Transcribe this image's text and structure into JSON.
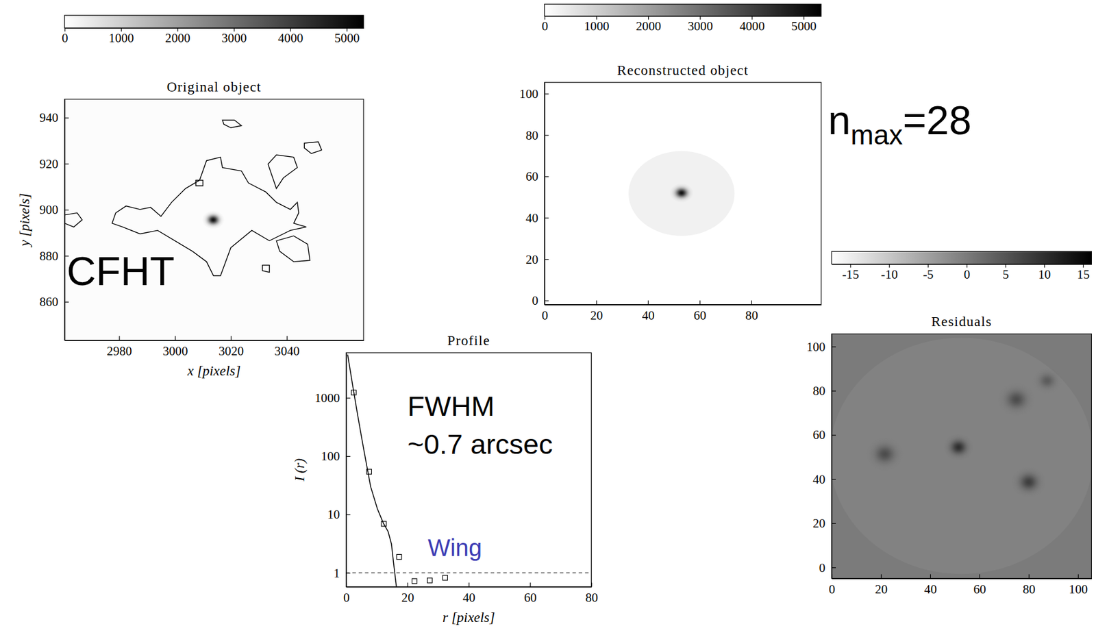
{
  "chart_data": [
    {
      "type": "image",
      "title": "Original object",
      "xlabel": "x [pixels]",
      "ylabel": "y [pixels]",
      "xlim": [
        2960.5,
        3067.5
      ],
      "ylim": [
        843.3,
        948
      ],
      "xticks": [
        2980,
        3000,
        3020,
        3040
      ],
      "yticks": [
        860,
        880,
        900,
        920,
        940
      ],
      "background": 60,
      "sources": [
        {
          "x": 3013.7,
          "y": 895.6,
          "peak": 5000,
          "sigma": 1.3
        }
      ],
      "contours": [
        [
          [
            2977.5,
            894.1
          ],
          [
            2978.8,
            898.6
          ],
          [
            2982.5,
            901.6
          ],
          [
            2987.5,
            900.1
          ],
          [
            2991.3,
            901
          ],
          [
            2995,
            897.1
          ],
          [
            2998.8,
            903.2
          ],
          [
            3003.8,
            909.2
          ],
          [
            3008.8,
            912.8
          ],
          [
            3011.3,
            921.3
          ],
          [
            3016.3,
            922.8
          ],
          [
            3017,
            918.3
          ],
          [
            3023.8,
            916.8
          ],
          [
            3026.3,
            911.6
          ],
          [
            3032.5,
            907.7
          ],
          [
            3036.3,
            903.2
          ],
          [
            3041.3,
            900.1
          ],
          [
            3043.8,
            903.2
          ],
          [
            3044.3,
            898.6
          ],
          [
            3042.5,
            894.1
          ],
          [
            3047,
            892.5
          ],
          [
            3041.3,
            891
          ],
          [
            3033.8,
            886.5
          ],
          [
            3027.5,
            891
          ],
          [
            3020,
            883.5
          ],
          [
            3016.3,
            871.3
          ],
          [
            3013.8,
            871.3
          ],
          [
            3011.3,
            877.4
          ],
          [
            3006.3,
            881.9
          ],
          [
            3000,
            886.5
          ],
          [
            2993.8,
            891
          ],
          [
            2987.5,
            889.5
          ],
          [
            2981.3,
            892.5
          ]
        ],
        [
          [
            3033.3,
            919.8
          ],
          [
            3036.3,
            923.8
          ],
          [
            3042.5,
            922.8
          ],
          [
            3043.8,
            918.3
          ],
          [
            3038.8,
            913.8
          ],
          [
            3036.3,
            909.2
          ],
          [
            3035,
            913.8
          ]
        ],
        [
          [
            3017,
            938.9
          ],
          [
            3021.3,
            938.9
          ],
          [
            3023.8,
            936.5
          ],
          [
            3020,
            935.6
          ],
          [
            3017.5,
            937.1
          ]
        ],
        [
          [
            3046.3,
            928.9
          ],
          [
            3051.3,
            929.5
          ],
          [
            3052.5,
            925.9
          ],
          [
            3048.8,
            924.4
          ],
          [
            3046.3,
            926.8
          ]
        ],
        [
          [
            3036.3,
            886.5
          ],
          [
            3042.5,
            888.6
          ],
          [
            3047.5,
            885
          ],
          [
            3048.3,
            878
          ],
          [
            3042.5,
            877.4
          ],
          [
            3037.5,
            881.9
          ]
        ],
        [
          [
            2960.5,
            897.7
          ],
          [
            2965,
            898.6
          ],
          [
            2966.8,
            895.6
          ],
          [
            2963.8,
            892.5
          ],
          [
            2960.5,
            894.1
          ]
        ],
        [
          [
            3007.5,
            912.8
          ],
          [
            3010,
            912.8
          ],
          [
            3010,
            910.4
          ],
          [
            3007.5,
            910.4
          ]
        ],
        [
          [
            3031.3,
            875.9
          ],
          [
            3033.8,
            875.9
          ],
          [
            3033.8,
            872.8
          ],
          [
            3031.3,
            873.5
          ]
        ]
      ],
      "colorbar": {
        "range": [
          0,
          5300
        ],
        "ticks": [
          0,
          1000,
          2000,
          3000,
          4000,
          5000
        ]
      },
      "annotations": [
        {
          "text": "CFHT"
        }
      ]
    },
    {
      "type": "image",
      "title": "Reconstructed object",
      "xlim": [
        0,
        107
      ],
      "ylim": [
        -2,
        105.4
      ],
      "xticks": [
        0,
        20,
        40,
        60,
        80
      ],
      "yticks": [
        0,
        20,
        40,
        60,
        80,
        100
      ],
      "background": 0,
      "support": {
        "cx": 53,
        "cy": 51.7,
        "r": 20.5,
        "value": 300
      },
      "sources": [
        {
          "x": 53,
          "y": 52,
          "peak": 5000,
          "sigma": 1.5
        }
      ],
      "colorbar": {
        "range": [
          0,
          5340
        ],
        "ticks": [
          0,
          1000,
          2000,
          3000,
          4000,
          5000
        ]
      },
      "annotations": [
        {
          "text": "n",
          "subscript": "max",
          "suffix": "=28"
        }
      ]
    },
    {
      "type": "line",
      "title": "Profile",
      "xlabel": "r [pixels]",
      "ylabel": "I (r)",
      "log": "y",
      "xlim": [
        0,
        80
      ],
      "ylim": [
        0.575,
        5900
      ],
      "xticks": [
        0,
        20,
        40,
        60,
        80
      ],
      "yticks": [
        1,
        10,
        100,
        1000
      ],
      "series": [
        {
          "type": "line",
          "color": "#000000",
          "x": [
            0.5,
            2.5,
            4,
            5.7,
            8,
            10.2,
            12.1,
            13.7,
            14.8,
            15.5,
            16.4
          ],
          "values": [
            5500,
            1250,
            430,
            135,
            30,
            12.5,
            7.2,
            5.1,
            3.1,
            1.45,
            0.58
          ]
        },
        {
          "type": "scatter",
          "marker": "square",
          "color": "#000000",
          "x": [
            2.5,
            7.5,
            12.3,
            17.3,
            22.3,
            27.3,
            32.3
          ],
          "values": [
            1230,
            54,
            6.9,
            1.87,
            0.72,
            0.74,
            0.82
          ]
        }
      ],
      "reference_line": {
        "value": 1,
        "line_style": "dashed"
      },
      "annotations": [
        {
          "text": "FWHM"
        },
        {
          "text": "~0.7 arcsec"
        },
        {
          "text": "Wing",
          "color": "#3c3cb4"
        }
      ]
    },
    {
      "type": "image",
      "title": "Residuals",
      "xlim": [
        0,
        105.5
      ],
      "ylim": [
        -5,
        105.7
      ],
      "xticks": [
        0,
        20,
        40,
        60,
        80,
        100
      ],
      "yticks": [
        0,
        20,
        40,
        60,
        80,
        100
      ],
      "background": 0,
      "support": {
        "cx": 52.7,
        "cy": 50.5,
        "r": 53.5,
        "value": -1
      },
      "sources": [
        {
          "x": 21.6,
          "y": 51.3,
          "peak": 6,
          "sigma": 2.5
        },
        {
          "x": 75,
          "y": 76,
          "peak": 6,
          "sigma": 2.5
        },
        {
          "x": 80,
          "y": 38.6,
          "peak": 8,
          "sigma": 2.3
        },
        {
          "x": 87.5,
          "y": 84.5,
          "peak": 4,
          "sigma": 2
        },
        {
          "x": 51.5,
          "y": 54.4,
          "peak": 10,
          "sigma": 2
        }
      ],
      "colorbar": {
        "range": [
          -17.4,
          16.1
        ],
        "ticks": [
          -15,
          -10,
          -5,
          0,
          5,
          10,
          15
        ]
      }
    }
  ]
}
